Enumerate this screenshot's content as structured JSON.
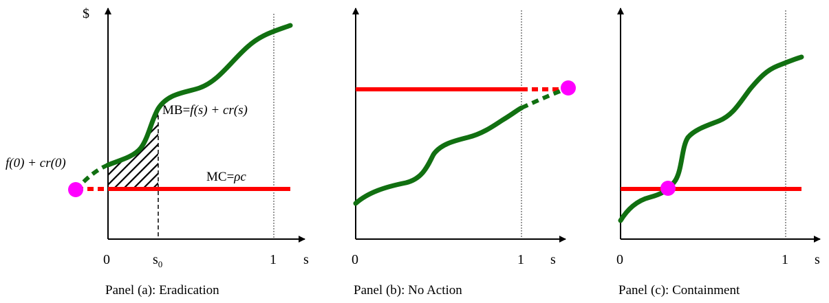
{
  "panels": [
    {
      "caption": "Panel (a): Eradication",
      "y_axis_label": "$",
      "x_axis_label": "s",
      "tick_zero": "0",
      "tick_s0_base": "s",
      "tick_s0_sub": "0",
      "tick_one": "1",
      "curve_label_prefix": "MB=",
      "curve_label_math": "f(s) + cr(s)",
      "intercept_label": "f(0) + cr(0)",
      "line_label_prefix": "MC=",
      "line_label_math": "ρc"
    },
    {
      "caption": "Panel (b): No Action",
      "x_axis_label": "s",
      "tick_zero": "0",
      "tick_one": "1"
    },
    {
      "caption": "Panel (c): Containment",
      "x_axis_label": "s",
      "tick_zero": "0",
      "tick_one": "1"
    }
  ],
  "colors": {
    "curve": "#117011",
    "line": "#ff0000",
    "dot": "#ff00ff",
    "axis": "#000000"
  }
}
